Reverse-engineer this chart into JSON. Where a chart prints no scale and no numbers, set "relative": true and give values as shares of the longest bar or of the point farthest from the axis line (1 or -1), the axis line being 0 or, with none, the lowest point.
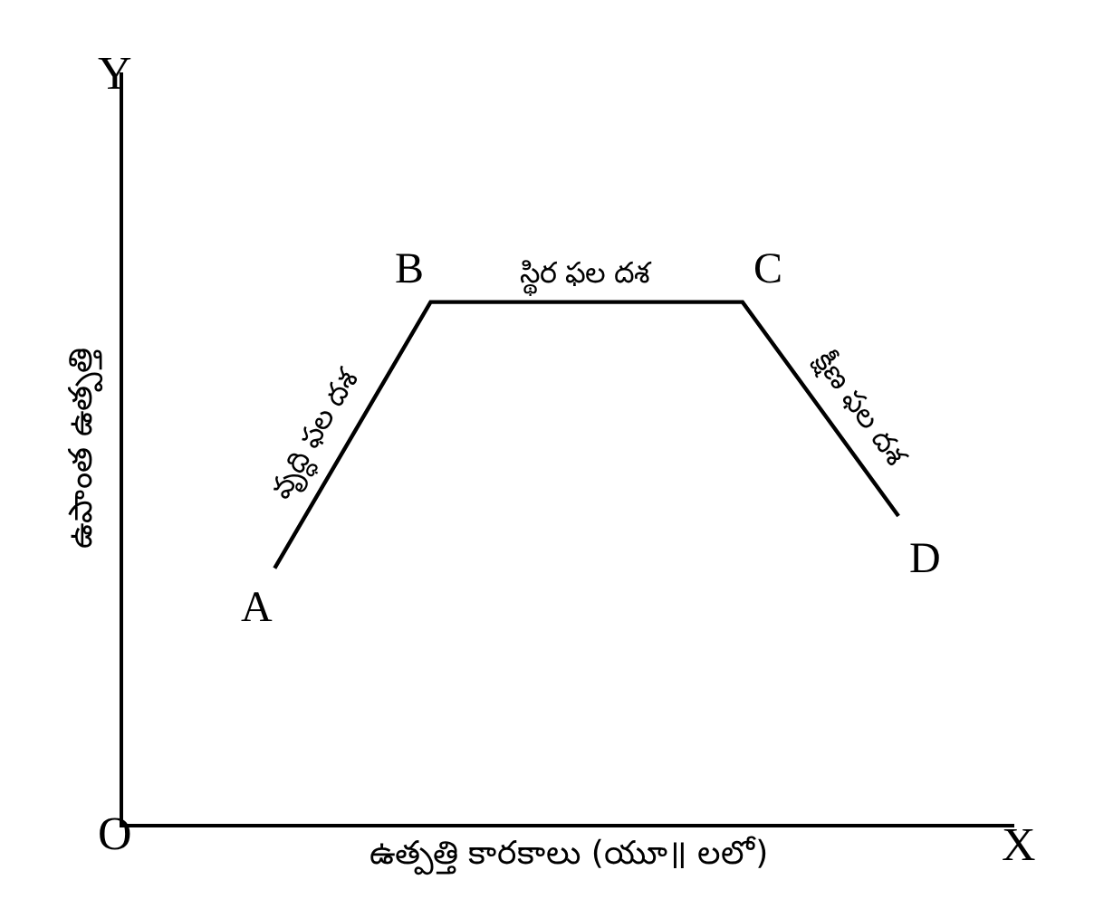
{
  "chart_data": {
    "type": "line",
    "relative": true,
    "xlabel": "ఉత్పత్తి కారకాలు (యూ॥ లలో)",
    "ylabel": "ఉపాంత ఉత్పత్తి",
    "categories": [
      null,
      null,
      null,
      null,
      null,
      null,
      null,
      null,
      null
    ],
    "legend": false,
    "marker": "none",
    "line_style": "solid",
    "series": [
      {
        "color": "#000000",
        "values": [
          0.49,
          0.745,
          1,
          1,
          1,
          1,
          1,
          0.795,
          0.59
        ]
      }
    ],
    "annotations": [
      "A",
      "B",
      "C",
      "D",
      "వృద్ధి ఫల దశ",
      "స్థిర ఫల దశ",
      "క్షీణ ఫల దశ",
      "O",
      "X",
      "Y"
    ]
  }
}
